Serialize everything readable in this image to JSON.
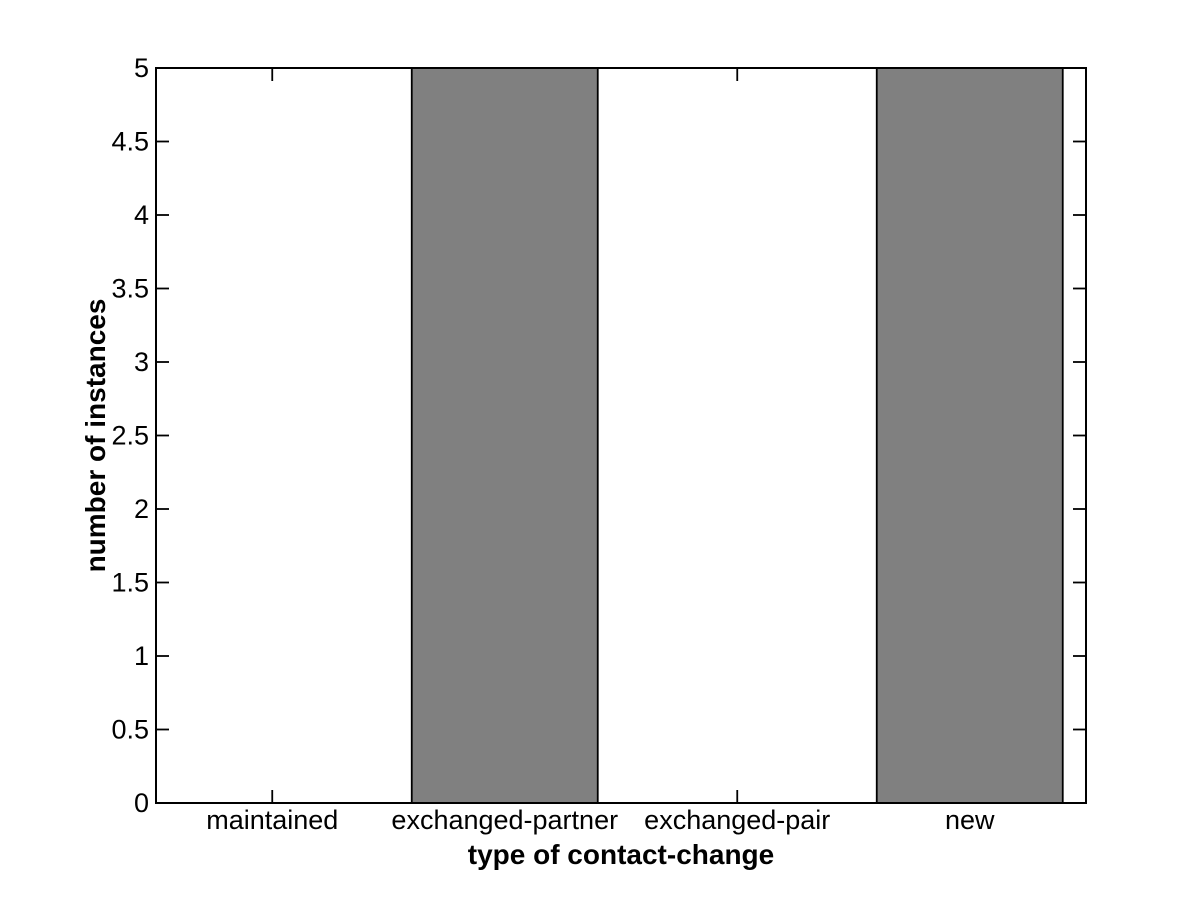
{
  "figure": {
    "background_color": "#ffffff"
  },
  "chart_data": {
    "type": "bar",
    "title": "",
    "categories": [
      "maintained",
      "exchanged-partner",
      "exchanged-pair",
      "new"
    ],
    "values": [
      0,
      5,
      0,
      5
    ],
    "xlabel": "type of contact-change",
    "ylabel": "number of instances",
    "ylim": [
      0,
      5
    ],
    "yticks": [
      0,
      0.5,
      1,
      1.5,
      2,
      2.5,
      3,
      3.5,
      4,
      4.5,
      5
    ],
    "ytick_labels": [
      "0",
      "0.5",
      "1",
      "1.5",
      "2",
      "2.5",
      "3",
      "3.5",
      "4",
      "4.5",
      "5"
    ],
    "bar_width_fraction": 0.8,
    "bar_color": "#808080",
    "bar_edge_color": "#000000",
    "axis_color": "#000000",
    "text_color": "#000000",
    "grid": false,
    "legend_position": "none",
    "box": true,
    "tick_direction": "in"
  }
}
